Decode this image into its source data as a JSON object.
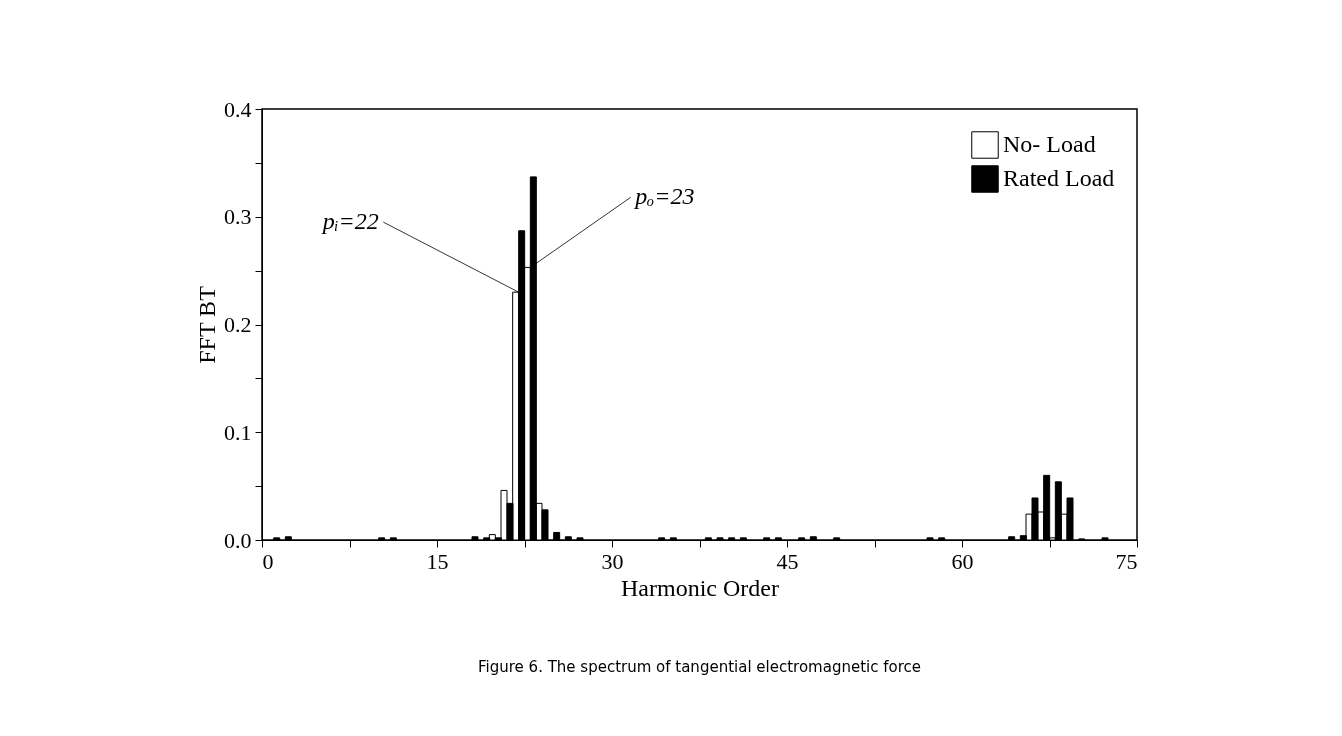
{
  "chart_data": {
    "type": "bar",
    "xlabel": "Harmonic Order",
    "ylabel": "FFT BT",
    "xlim": [
      0,
      75
    ],
    "ylim": [
      0,
      0.4
    ],
    "xticks": [
      0,
      {
        "value": 7.5,
        "label": null
      },
      15,
      {
        "value": 22.5,
        "label": null
      },
      30,
      {
        "value": 37.5,
        "label": null
      },
      45,
      {
        "value": 52.5,
        "label": null
      },
      60,
      {
        "value": 67.5,
        "label": null
      },
      75
    ],
    "yticks": [
      {
        "value": 0,
        "label": "0.0"
      },
      {
        "value": 0.05,
        "label": null
      },
      0.1,
      {
        "value": 0.15,
        "label": null
      },
      0.2,
      {
        "value": 0.25,
        "label": null
      },
      0.3,
      {
        "value": 0.35,
        "label": null
      },
      0.4
    ],
    "grid": false,
    "legend": "top right",
    "series": [
      {
        "name": "No- Load",
        "color": "#ffffff",
        "x": [
          20,
          21,
          22,
          23,
          24,
          66,
          67,
          68,
          69
        ],
        "values": [
          0.005,
          0.046,
          0.23,
          0.253,
          0.034,
          0.024,
          0.026,
          0.002,
          0.024
        ]
      },
      {
        "name": "Rated Load",
        "color": "#000000",
        "x": [
          1,
          2,
          10,
          11,
          18,
          19,
          20,
          21,
          22,
          23,
          24,
          25,
          26,
          27,
          34,
          35,
          38,
          39,
          40,
          41,
          43,
          44,
          46,
          47,
          49,
          57,
          58,
          64,
          65,
          66,
          67,
          68,
          69,
          70,
          72
        ],
        "values": [
          0.002,
          0.003,
          0.002,
          0.002,
          0.003,
          0.002,
          0.002,
          0.034,
          0.287,
          0.337,
          0.028,
          0.007,
          0.003,
          0.002,
          0.002,
          0.002,
          0.002,
          0.002,
          0.002,
          0.002,
          0.002,
          0.002,
          0.002,
          0.003,
          0.002,
          0.002,
          0.002,
          0.003,
          0.004,
          0.039,
          0.06,
          0.054,
          0.039,
          0.001,
          0.002
        ]
      }
    ],
    "annotations": [
      {
        "text": "pᵢ=22",
        "x": 22,
        "y": 0.23
      },
      {
        "text": "pₒ=23",
        "x": 23,
        "y": 0.253
      },
      "Figure 6. The spectrum of tangential electromagnetic force"
    ]
  }
}
